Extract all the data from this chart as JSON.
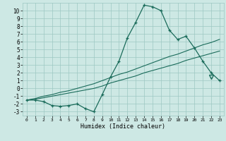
{
  "title": "",
  "xlabel": "Humidex (Indice chaleur)",
  "ylabel": "",
  "bg_color": "#cde8e4",
  "grid_color": "#9dc8c2",
  "line_color": "#1a6b5a",
  "x_data": [
    0,
    1,
    2,
    3,
    4,
    5,
    6,
    7,
    8,
    9,
    10,
    11,
    12,
    13,
    14,
    15,
    16,
    17,
    18,
    19,
    20,
    21,
    22,
    23
  ],
  "y_main": [
    -1.5,
    -1.5,
    -1.7,
    -2.2,
    -2.3,
    -2.2,
    -2.0,
    -2.6,
    -3.0,
    -0.8,
    1.5,
    3.5,
    6.5,
    8.5,
    10.7,
    10.5,
    10.0,
    7.5,
    6.3,
    6.7,
    5.2,
    3.5,
    2.0,
    1.0
  ],
  "y_trend1": [
    -1.5,
    -1.4,
    -1.2,
    -1.0,
    -0.8,
    -0.6,
    -0.4,
    -0.2,
    0.0,
    0.3,
    0.7,
    1.0,
    1.3,
    1.6,
    2.0,
    2.3,
    2.6,
    2.9,
    3.2,
    3.6,
    3.9,
    4.2,
    4.5,
    4.8
  ],
  "y_trend2": [
    -1.5,
    -1.3,
    -1.0,
    -0.8,
    -0.5,
    -0.3,
    0.0,
    0.3,
    0.6,
    1.0,
    1.4,
    1.8,
    2.1,
    2.5,
    2.9,
    3.3,
    3.7,
    4.1,
    4.4,
    4.8,
    5.2,
    5.6,
    5.9,
    6.3
  ],
  "xlim": [
    -0.5,
    23.5
  ],
  "ylim": [
    -3.5,
    11.0
  ],
  "yticks": [
    -3,
    -2,
    -1,
    0,
    1,
    2,
    3,
    4,
    5,
    6,
    7,
    8,
    9,
    10
  ],
  "xticks": [
    0,
    1,
    2,
    3,
    4,
    5,
    6,
    7,
    8,
    9,
    10,
    11,
    12,
    13,
    14,
    15,
    16,
    17,
    18,
    19,
    20,
    21,
    22,
    23
  ],
  "triangle_x": [
    22
  ],
  "triangle_y": [
    1.5
  ]
}
